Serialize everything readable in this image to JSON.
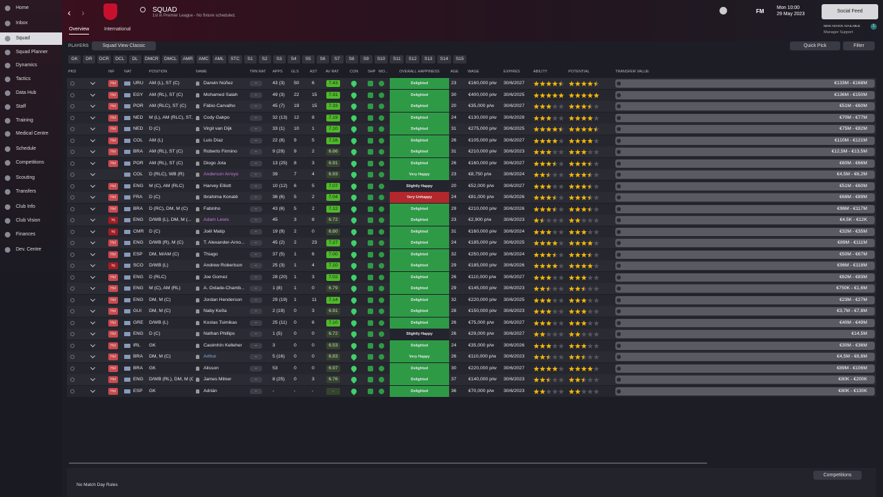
{
  "sidebar": [
    "Home",
    "Inbox",
    "Squad",
    "Squad Planner",
    "Dynamics",
    "Tactics",
    "Data Hub",
    "Staff",
    "Training",
    "Medical Centre",
    "Schedule",
    "Competitions",
    "Scouting",
    "Transfers",
    "Club Info",
    "Club Vision",
    "Finances",
    "Dev. Centre"
  ],
  "header": {
    "title": "SQUAD",
    "subtitle": "1st in Premier League - No fixture scheduled.",
    "tabs": [
      "Overview",
      "International"
    ],
    "day_time": "Mon 10:00",
    "date": "29 May 2023",
    "fm": "FM",
    "social": "Social Feed",
    "advice": "NEW ADVICE AVAILABLE",
    "support": "Manager Support",
    "badge": "1"
  },
  "toolbar": {
    "players": "PLAYERS",
    "view": "Squad View Classic",
    "quick_pick": "Quick Pick",
    "filter": "Filter",
    "positions": [
      "GK",
      "DR",
      "DCR",
      "DCL",
      "DL",
      "DMCR",
      "DMCL",
      "AMR",
      "AMC",
      "AML",
      "STC",
      "S1",
      "S2",
      "S3",
      "S4",
      "S5",
      "S6",
      "S7",
      "S8",
      "S9",
      "S10",
      "S11",
      "S12",
      "S13",
      "S14",
      "S15"
    ]
  },
  "table": {
    "columns": [
      "PKD",
      "INF",
      "NAT",
      "POSITION",
      "NAME",
      "TRN RAT",
      "APPS",
      "GLS",
      "AST",
      "AV RAT",
      "CON",
      "SHP",
      "MO...",
      "OVERALL HAPPINESS",
      "AGE",
      "WAGE",
      "EXPIRES",
      "ABILITY",
      "POTENTIAL",
      "TRANSFER VALUE"
    ],
    "happiness_colors": {
      "Delighted": "#2e9a46",
      "Very Happy": "#2e9a46",
      "Slightly Happy": "#24242e",
      "Very Unhappy": "#b3282d"
    },
    "rows": [
      {
        "inf": "Hol",
        "nat": "URU",
        "position": "AM (L), ST (C)",
        "name": "Darwin Núñez",
        "trn": "-",
        "apps": "43 (3)",
        "gls": 50,
        "ast": 6,
        "av": "7.43",
        "happiness": "Delighted",
        "age": 23,
        "wage": "€160,000 p/w",
        "expires": "30/6/2027",
        "ability": 4.5,
        "potential": 4.5,
        "value": "€133M - €168M"
      },
      {
        "inf": "Hol",
        "nat": "EGY",
        "position": "AM (RL), ST (C)",
        "name": "Mohamed Salah",
        "trn": "-",
        "apps": "49 (3)",
        "gls": 22,
        "ast": 15,
        "av": "7.31",
        "happiness": "Delighted",
        "age": 30,
        "wage": "€400,000 p/w",
        "expires": "30/6/2025",
        "ability": 5,
        "potential": 5,
        "value": "€136M - €150M"
      },
      {
        "inf": "Hol",
        "nat": "POR",
        "position": "AM (RLC), ST (C)",
        "name": "Fábio Carvalho",
        "trn": "-",
        "apps": "45 (7)",
        "gls": 19,
        "ast": 15,
        "av": "7.33",
        "happiness": "Delighted",
        "age": 20,
        "wage": "€35,000 p/w",
        "expires": "30/6/2027",
        "ability": 3,
        "potential": 3.5,
        "value": "€51M - €60M"
      },
      {
        "inf": "Hol",
        "nat": "NED",
        "position": "M (L), AM (RLC), ST...",
        "name": "Cody Gakpo",
        "trn": "-",
        "apps": "32 (13)",
        "gls": 12,
        "ast": 8,
        "av": "7.19",
        "happiness": "Delighted",
        "age": 24,
        "wage": "€130,000 p/w",
        "expires": "30/6/2028",
        "ability": 3,
        "potential": 4,
        "value": "€70M - €77M"
      },
      {
        "inf": "Hol",
        "nat": "NED",
        "position": "D (C)",
        "name": "Virgil van Dijk",
        "trn": "-",
        "apps": "33 (1)",
        "gls": 10,
        "ast": 1,
        "av": "7.10",
        "happiness": "Delighted",
        "age": 31,
        "wage": "€275,000 p/w",
        "expires": "30/6/2025",
        "ability": 4.5,
        "potential": 4.5,
        "value": "€75M - €82M"
      },
      {
        "inf": "Hol",
        "nat": "COL",
        "position": "AM (L)",
        "name": "Luis Díaz",
        "trn": "-",
        "apps": "22 (8)",
        "gls": 9,
        "ast": 5,
        "av": "7.16",
        "happiness": "Delighted",
        "age": 26,
        "wage": "€105,000 p/w",
        "expires": "30/6/2027",
        "ability": 4,
        "potential": 4,
        "value": "€110M - €121M"
      },
      {
        "inf": "Hol",
        "nat": "BRA",
        "position": "AM (RL), ST (C)",
        "name": "Roberto Firmino",
        "trn": "-",
        "apps": "9 (29)",
        "gls": 9,
        "ast": 2,
        "av": "6.86",
        "happiness": "Delighted",
        "age": 31,
        "wage": "€210,000 p/w",
        "expires": "30/6/2023",
        "ability": 3,
        "potential": 3,
        "value": "€12,5M - €13,5M"
      },
      {
        "inf": "Hol",
        "nat": "POR",
        "position": "AM (RL), ST (C)",
        "name": "Diogo Jota",
        "trn": "-",
        "apps": "13 (25)",
        "gls": 8,
        "ast": 3,
        "av": "6.91",
        "happiness": "Delighted",
        "age": 26,
        "wage": "€160,000 p/w",
        "expires": "30/6/2027",
        "ability": 3.5,
        "potential": 3.5,
        "value": "€60M - €66M"
      },
      {
        "inf": null,
        "nat": "COL",
        "position": "D (RLC), WB (R)",
        "name": "Anderson Arroyo",
        "name_color": "#c77bdc",
        "trn": "-",
        "apps": "39",
        "gls": 7,
        "ast": 4,
        "av": "6.93",
        "happiness": "Very Happy",
        "age": 23,
        "wage": "€8,750 p/w",
        "expires": "30/6/2024",
        "ability": 2.5,
        "potential": 3.5,
        "value": "€4,5M - €6,2M"
      },
      {
        "inf": "Hol",
        "nat": "ENG",
        "position": "M (C), AM (RLC)",
        "name": "Harvey Elliott",
        "trn": "-",
        "apps": "10 (12)",
        "gls": 6,
        "ast": 5,
        "av": "7.07",
        "happiness": "Slightly Happy",
        "age": 20,
        "wage": "€52,000 p/w",
        "expires": "30/6/2027",
        "ability": 3,
        "potential": 3.5,
        "value": "€51M - €60M"
      },
      {
        "inf": "Hol",
        "nat": "FRA",
        "position": "D (C)",
        "name": "Ibrahima Konaté",
        "trn": "-",
        "apps": "36 (6)",
        "gls": 5,
        "ast": 2,
        "av": "7.04",
        "happiness": "Very Unhappy",
        "age": 24,
        "wage": "€81,000 p/w",
        "expires": "30/6/2026",
        "ability": 3.5,
        "potential": 3.5,
        "value": "€68M - €89M"
      },
      {
        "inf": "Hol",
        "nat": "BRA",
        "position": "D (RC), DM, M (C)",
        "name": "Fabinho",
        "trn": "-",
        "apps": "43 (6)",
        "gls": 5,
        "ast": 2,
        "av": "7.12",
        "happiness": "Delighted",
        "age": 29,
        "wage": "€210,000 p/w",
        "expires": "30/6/2026",
        "ability": 3.5,
        "potential": 3.5,
        "value": "€96M - €117M"
      },
      {
        "inf": "Inj",
        "nat": "ENG",
        "position": "D/WB (L), DM, M (...",
        "name": "Adam Lewis",
        "name_color": "#c77bdc",
        "trn": "-",
        "apps": "45",
        "gls": 3,
        "ast": 8,
        "av": "6.72",
        "happiness": "Delighted",
        "age": 23,
        "wage": "€2,900 p/w",
        "expires": "30/6/2023",
        "ability": 1.5,
        "potential": 2,
        "value": "€4,5K - €12K"
      },
      {
        "inf": "Inj",
        "nat": "CMR",
        "position": "D (C)",
        "name": "Joël Matip",
        "trn": "-",
        "apps": "19 (9)",
        "gls": 2,
        "ast": 0,
        "av": "6.80",
        "happiness": "Delighted",
        "age": 31,
        "wage": "€160,000 p/w",
        "expires": "30/6/2024",
        "ability": 3,
        "potential": 3,
        "value": "€32M - €35M"
      },
      {
        "inf": "Hol",
        "nat": "ENG",
        "position": "D/WB (R), M (C)",
        "name": "T. Alexander-Arno...",
        "trn": "-",
        "apps": "45 (2)",
        "gls": 2,
        "ast": 23,
        "av": "7.27",
        "happiness": "Delighted",
        "age": 24,
        "wage": "€185,000 p/w",
        "expires": "30/6/2025",
        "ability": 4,
        "potential": 4,
        "value": "€89M - €111M"
      },
      {
        "inf": "Hol",
        "nat": "ESP",
        "position": "DM, M/AM (C)",
        "name": "Thiago",
        "trn": "-",
        "apps": "37 (5)",
        "gls": 1,
        "ast": 6,
        "av": "7.00",
        "happiness": "Delighted",
        "age": 32,
        "wage": "€250,000 p/w",
        "expires": "30/6/2024",
        "ability": 3.5,
        "potential": 3.5,
        "value": "€50M - €67M"
      },
      {
        "inf": "Inj",
        "nat": "SCO",
        "position": "D/WB (L)",
        "name": "Andrew Robertson",
        "trn": "-",
        "apps": "25 (3)",
        "gls": 1,
        "ast": 4,
        "av": "7.10",
        "happiness": "Delighted",
        "age": 29,
        "wage": "€185,000 p/w",
        "expires": "30/6/2026",
        "ability": 4,
        "potential": 4,
        "value": "€96M - €118M"
      },
      {
        "inf": "Hol",
        "nat": "ENG",
        "position": "D (RLC)",
        "name": "Joe Gomez",
        "trn": "-",
        "apps": "28 (20)",
        "gls": 1,
        "ast": 3,
        "av": "7.02",
        "happiness": "Delighted",
        "age": 26,
        "wage": "€110,000 p/w",
        "expires": "30/6/2027",
        "ability": 3,
        "potential": 3,
        "value": "€62M - €83M"
      },
      {
        "inf": "Hol",
        "nat": "ENG",
        "position": "M (C), AM (RL)",
        "name": "A. Oxlade-Chamb...",
        "trn": "-",
        "apps": "1 (8)",
        "gls": 1,
        "ast": 0,
        "av": "6.79",
        "happiness": "Delighted",
        "age": 29,
        "wage": "€145,000 p/w",
        "expires": "30/6/2023",
        "ability": 2.5,
        "potential": 2.5,
        "value": "€750K - €1,6M"
      },
      {
        "inf": "Hol",
        "nat": "ENG",
        "position": "DM, M (C)",
        "name": "Jordan Henderson",
        "trn": "-",
        "apps": "29 (19)",
        "gls": 1,
        "ast": 11,
        "av": "7.14",
        "happiness": "Delighted",
        "age": 32,
        "wage": "€220,000 p/w",
        "expires": "30/6/2025",
        "ability": 3,
        "potential": 3,
        "value": "€23M - €27M"
      },
      {
        "inf": "Hol",
        "nat": "GUI",
        "position": "DM, M (C)",
        "name": "Naby Keïta",
        "trn": "-",
        "apps": "2 (19)",
        "gls": 0,
        "ast": 3,
        "av": "6.91",
        "happiness": "Delighted",
        "age": 28,
        "wage": "€150,000 p/w",
        "expires": "30/6/2023",
        "ability": 3,
        "potential": 3,
        "value": "€3,7M - €7,8M"
      },
      {
        "inf": "Hol",
        "nat": "GRE",
        "position": "D/WB (L)",
        "name": "Kostas Tsimikas",
        "trn": "-",
        "apps": "25 (11)",
        "gls": 0,
        "ast": 6,
        "av": "7.10",
        "happiness": "Delighted",
        "age": 26,
        "wage": "€75,000 p/w",
        "expires": "30/6/2027",
        "ability": 3,
        "potential": 3,
        "value": "€40M - €49M"
      },
      {
        "inf": "Hol",
        "nat": "ENG",
        "position": "D (C)",
        "name": "Nathan Phillips",
        "trn": "-",
        "apps": "1 (5)",
        "gls": 0,
        "ast": 0,
        "av": "6.72",
        "happiness": "Slightly Happy",
        "age": 26,
        "wage": "€29,000 p/w",
        "expires": "30/6/2027",
        "ability": 2,
        "potential": 2,
        "value": "€14,5M"
      },
      {
        "inf": "Hol",
        "nat": "IRL",
        "position": "GK",
        "name": "Caoimhín Kelleher",
        "trn": "-",
        "apps": "3",
        "gls": 0,
        "ast": 0,
        "av": "6.53",
        "happiness": "Delighted",
        "age": 24,
        "wage": "€35,000 p/w",
        "expires": "30/6/2026",
        "ability": 3,
        "potential": 3,
        "value": "€30M - €36M"
      },
      {
        "inf": "Hol",
        "nat": "BRA",
        "position": "DM, M (C)",
        "name": "Arthur",
        "name_color": "#7fb3e6",
        "trn": "-",
        "apps": "5 (16)",
        "gls": 0,
        "ast": 0,
        "av": "6.83",
        "happiness": "Very Happy",
        "age": 26,
        "wage": "€110,000 p/w",
        "expires": "30/6/2023",
        "ability": 2.5,
        "potential": 2.5,
        "value": "€4,5M - €6,6M"
      },
      {
        "inf": "Hol",
        "nat": "BRA",
        "position": "GK",
        "name": "Alisson",
        "trn": "-",
        "apps": "53",
        "gls": 0,
        "ast": 0,
        "av": "6.97",
        "happiness": "Delighted",
        "age": 30,
        "wage": "€220,000 p/w",
        "expires": "30/6/2027",
        "ability": 4,
        "potential": 4,
        "value": "€89M - €106M"
      },
      {
        "inf": "Hol",
        "nat": "ENG",
        "position": "D/WB (RL), DM, M (C)",
        "name": "James Milner",
        "trn": "-",
        "apps": "8 (25)",
        "gls": 0,
        "ast": 3,
        "av": "6.76",
        "happiness": "Delighted",
        "age": 37,
        "wage": "€140,000 p/w",
        "expires": "30/6/2023",
        "ability": 2.5,
        "potential": 2.5,
        "value": "€80K - €200K"
      },
      {
        "inf": "Hol",
        "nat": "ESP",
        "position": "GK",
        "name": "Adrián",
        "trn": "-",
        "apps": "-",
        "gls": "-",
        "ast": "-",
        "av": "-",
        "happiness": "Delighted",
        "age": 36,
        "wage": "€70,000 p/w",
        "expires": "30/6/2023",
        "ability": 2,
        "potential": 2,
        "value": "€80K - €130K"
      }
    ]
  },
  "footer": {
    "rules": "No Match Day Rules",
    "competitions": "Competitions"
  }
}
